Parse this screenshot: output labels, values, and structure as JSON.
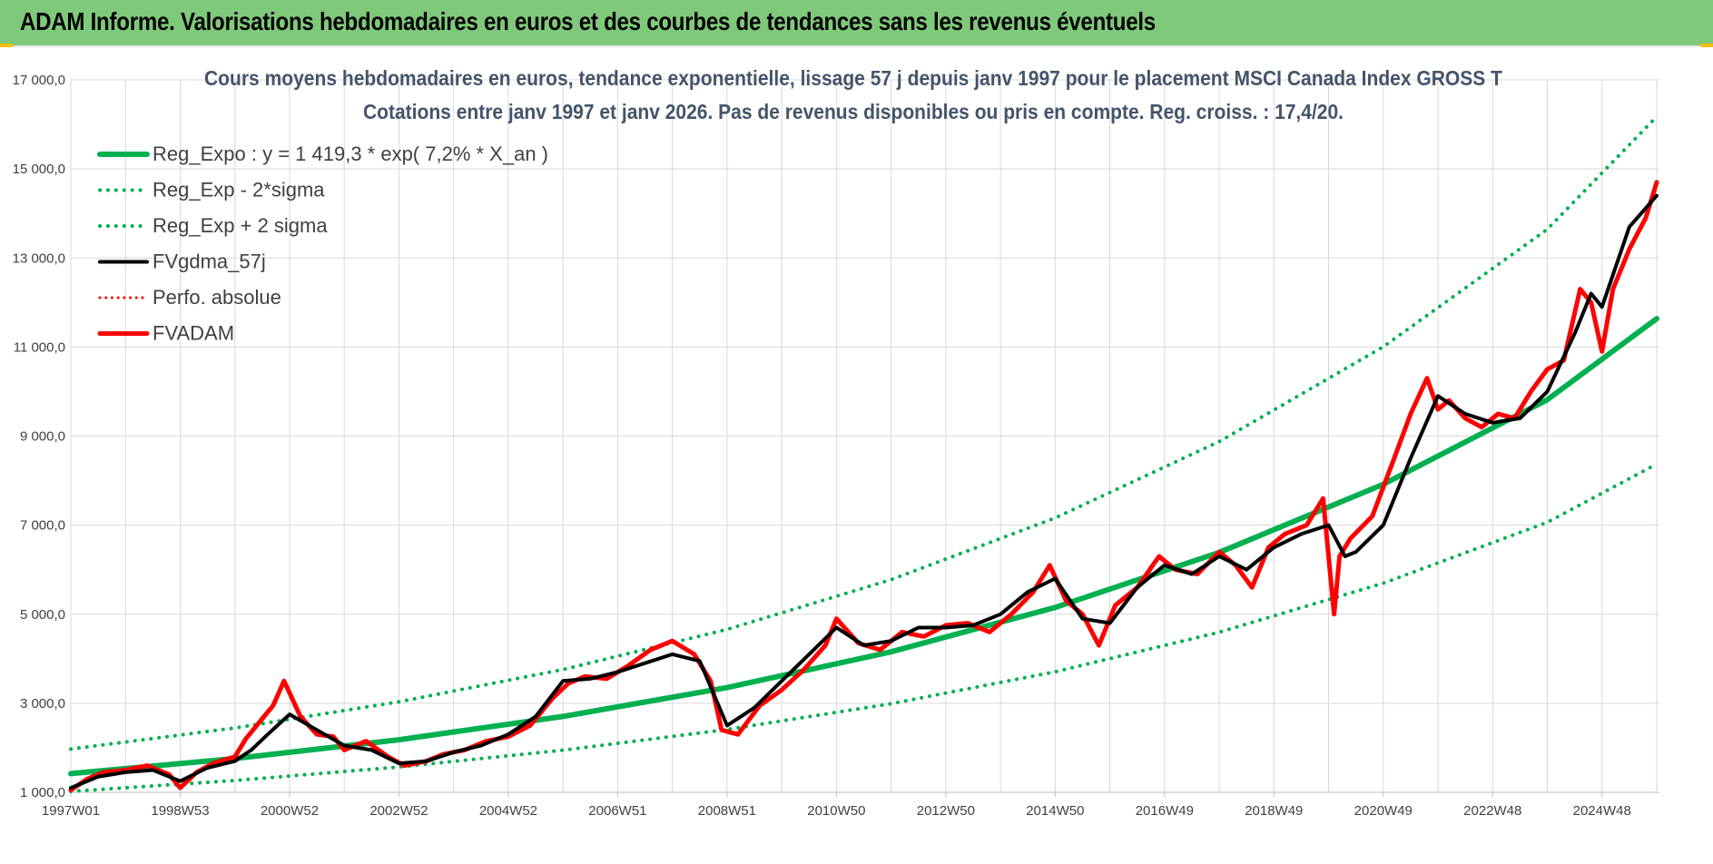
{
  "banner": {
    "title": "ADAM Informe. Valorisations hebdomadaires en euros et des courbes de tendances sans les revenus éventuels"
  },
  "colors": {
    "banner_bg": "#7fc97a",
    "trend": "#00b050",
    "fvgdma": "#000000",
    "fvadam": "#ff0000",
    "title_text": "#44546a",
    "grid": "#d9d9d9",
    "accent_corner": "#f2c100"
  },
  "chart_data": {
    "type": "line",
    "title": "Cours moyens hebdomadaires en euros, tendance exponentielle, lissage 57 j depuis janv 1997 pour le placement MSCI Canada Index GROSS T",
    "subtitle": "Cotations entre janv 1997 et janv 2026. Pas de revenus disponibles ou pris en compte. Reg. croiss. : 17,4/20.",
    "xlabel": "",
    "ylabel": "",
    "ylim": [
      1000,
      17000
    ],
    "xlim": [
      1997.0,
      2026.05
    ],
    "grid": true,
    "legend_position": "top-left",
    "y_ticks": [
      1000,
      3000,
      5000,
      7000,
      9000,
      11000,
      13000,
      15000,
      17000
    ],
    "y_tick_labels": [
      "1 000,0",
      "3 000,0",
      "5 000,0",
      "7 000,0",
      "9 000,0",
      "11 000,0",
      "13 000,0",
      "15 000,0",
      "17 000,0"
    ],
    "x_ticks": [
      {
        "x": 1997.0,
        "label": "1997W01"
      },
      {
        "x": 1999.0,
        "label": "1998W53"
      },
      {
        "x": 2001.0,
        "label": "2000W52"
      },
      {
        "x": 2003.0,
        "label": "2002W52"
      },
      {
        "x": 2005.0,
        "label": "2004W52"
      },
      {
        "x": 2007.0,
        "label": "2006W51"
      },
      {
        "x": 2009.0,
        "label": "2008W51"
      },
      {
        "x": 2011.0,
        "label": "2010W50"
      },
      {
        "x": 2013.0,
        "label": "2012W50"
      },
      {
        "x": 2015.0,
        "label": "2014W50"
      },
      {
        "x": 2017.0,
        "label": "2016W49"
      },
      {
        "x": 2019.0,
        "label": "2018W49"
      },
      {
        "x": 2021.0,
        "label": "2020W49"
      },
      {
        "x": 2023.0,
        "label": "2022W48"
      },
      {
        "x": 2025.0,
        "label": "2024W48"
      }
    ],
    "trend": {
      "a": 1419.3,
      "rate": 0.072,
      "sigma_factor": 1.39
    },
    "legend": [
      {
        "label": "Reg_Expo : y = 1 419,3 * exp( 7,2% *  X_an )",
        "color": "#00b050",
        "style": "solid",
        "width": 6
      },
      {
        "label": "Reg_Exp - 2*sigma",
        "color": "#00b050",
        "style": "dotted",
        "width": 4
      },
      {
        "label": "Reg_Exp + 2 sigma",
        "color": "#00b050",
        "style": "dotted",
        "width": 4
      },
      {
        "label": "FVgdma_57j",
        "color": "#000000",
        "style": "solid",
        "width": 4
      },
      {
        "label": "Perfo. absolue",
        "color": "#ff0000",
        "style": "dotted",
        "width": 3
      },
      {
        "label": "FVADAM",
        "color": "#ff0000",
        "style": "solid",
        "width": 5
      }
    ],
    "series": [
      {
        "name": "Reg_Expo : y = 1 419,3 * exp( 7,2% *  X_an )",
        "x": [
          1997.0,
          2000.0,
          2003.0,
          2006.0,
          2009.0,
          2012.0,
          2015.0,
          2018.0,
          2021.0,
          2024.0,
          2026.0
        ],
        "values": [
          1419,
          1759,
          2181,
          2703,
          3352,
          4155,
          5152,
          6387,
          7918,
          9817,
          11637
        ]
      },
      {
        "name": "Reg_Exp - 2*sigma",
        "x": [
          1997.0,
          2000.0,
          2003.0,
          2006.0,
          2009.0,
          2012.0,
          2015.0,
          2018.0,
          2021.0,
          2024.0,
          2026.0
        ],
        "values": [
          1021,
          1265,
          1569,
          1945,
          2411,
          2989,
          3706,
          4595,
          5696,
          7063,
          8372
        ]
      },
      {
        "name": "Reg_Exp + 2 sigma",
        "x": [
          1997.0,
          2000.0,
          2003.0,
          2006.0,
          2009.0,
          2012.0,
          2015.0,
          2018.0,
          2021.0,
          2024.0,
          2026.0
        ],
        "values": [
          1973,
          2445,
          3032,
          3757,
          4659,
          5776,
          7161,
          8878,
          11006,
          13646,
          16175
        ]
      },
      {
        "name": "FVgdma_57j",
        "x": [
          1997.0,
          1997.5,
          1998.0,
          1998.5,
          1999.0,
          1999.5,
          2000.0,
          2000.3,
          2000.6,
          2001.0,
          2001.5,
          2002.0,
          2002.5,
          2003.0,
          2003.5,
          2004.0,
          2004.5,
          2005.0,
          2005.5,
          2006.0,
          2006.5,
          2007.0,
          2007.5,
          2008.0,
          2008.5,
          2009.0,
          2009.5,
          2010.0,
          2010.5,
          2011.0,
          2011.5,
          2012.0,
          2012.5,
          2013.0,
          2013.5,
          2014.0,
          2014.5,
          2015.0,
          2015.5,
          2016.0,
          2016.5,
          2017.0,
          2017.5,
          2018.0,
          2018.5,
          2019.0,
          2019.5,
          2020.0,
          2020.3,
          2020.5,
          2021.0,
          2021.5,
          2022.0,
          2022.5,
          2023.0,
          2023.5,
          2024.0,
          2024.5,
          2024.8,
          2025.0,
          2025.5,
          2026.0
        ],
        "values": [
          1100,
          1350,
          1450,
          1500,
          1250,
          1550,
          1700,
          1950,
          2300,
          2750,
          2400,
          2050,
          1950,
          1650,
          1700,
          1900,
          2050,
          2300,
          2700,
          3500,
          3550,
          3700,
          3900,
          4100,
          3950,
          2500,
          2900,
          3500,
          4100,
          4700,
          4300,
          4400,
          4700,
          4700,
          4750,
          5000,
          5500,
          5800,
          4900,
          4800,
          5600,
          6100,
          5900,
          6300,
          6000,
          6500,
          6800,
          7000,
          6300,
          6400,
          7000,
          8500,
          9900,
          9500,
          9300,
          9400,
          10000,
          11300,
          12200,
          11900,
          13700,
          14400
        ]
      },
      {
        "name": "FVADAM",
        "x": [
          1997.0,
          1997.3,
          1997.6,
          1998.0,
          1998.4,
          1998.8,
          1999.0,
          1999.3,
          1999.6,
          2000.0,
          2000.2,
          2000.5,
          2000.7,
          2000.9,
          2001.2,
          2001.5,
          2001.8,
          2002.0,
          2002.4,
          2002.8,
          2003.1,
          2003.5,
          2003.8,
          2004.2,
          2004.6,
          2005.0,
          2005.4,
          2005.8,
          2006.1,
          2006.4,
          2006.8,
          2007.2,
          2007.6,
          2008.0,
          2008.4,
          2008.7,
          2008.9,
          2009.2,
          2009.6,
          2010.0,
          2010.4,
          2010.8,
          2011.0,
          2011.4,
          2011.8,
          2012.2,
          2012.6,
          2013.0,
          2013.4,
          2013.8,
          2014.2,
          2014.6,
          2014.9,
          2015.2,
          2015.5,
          2015.8,
          2016.1,
          2016.5,
          2016.9,
          2017.2,
          2017.6,
          2018.0,
          2018.3,
          2018.6,
          2018.9,
          2019.2,
          2019.6,
          2019.9,
          2020.1,
          2020.2,
          2020.4,
          2020.8,
          2021.2,
          2021.5,
          2021.8,
          2022.0,
          2022.2,
          2022.5,
          2022.8,
          2023.1,
          2023.4,
          2023.7,
          2024.0,
          2024.3,
          2024.6,
          2024.8,
          2025.0,
          2025.2,
          2025.5,
          2025.8,
          2026.0
        ],
        "values": [
          1050,
          1300,
          1450,
          1500,
          1600,
          1400,
          1100,
          1450,
          1650,
          1800,
          2200,
          2650,
          2950,
          3500,
          2700,
          2300,
          2250,
          1950,
          2150,
          1800,
          1600,
          1700,
          1850,
          1950,
          2150,
          2250,
          2500,
          3100,
          3450,
          3600,
          3550,
          3850,
          4200,
          4400,
          4100,
          3500,
          2400,
          2300,
          2950,
          3300,
          3750,
          4300,
          4900,
          4350,
          4200,
          4600,
          4500,
          4750,
          4800,
          4600,
          5000,
          5500,
          6100,
          5300,
          5000,
          4300,
          5200,
          5600,
          6300,
          6000,
          5900,
          6400,
          6100,
          5600,
          6500,
          6800,
          7000,
          7600,
          5000,
          6300,
          6700,
          7200,
          8500,
          9500,
          10300,
          9600,
          9800,
          9400,
          9200,
          9500,
          9400,
          10000,
          10500,
          10700,
          12300,
          12000,
          10900,
          12300,
          13200,
          13900,
          14700
        ]
      }
    ]
  }
}
